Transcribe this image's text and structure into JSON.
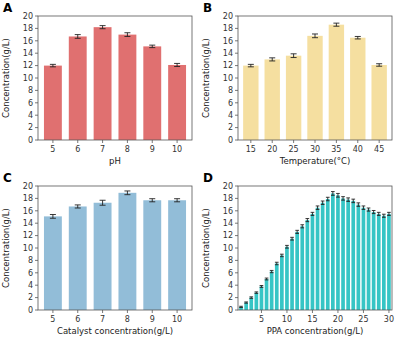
{
  "chart_data": [
    {
      "type": "bar",
      "title": "A",
      "xlabel": "pH",
      "ylabel": "Concentration(g/L)",
      "color": "#E07070",
      "x": [
        5,
        6,
        7,
        8,
        9,
        10
      ],
      "values": [
        12.0,
        16.7,
        18.2,
        17.0,
        15.1,
        12.1
      ],
      "errors": [
        0.2,
        0.3,
        0.25,
        0.3,
        0.2,
        0.25
      ],
      "xlim": [
        4.4,
        10.6
      ],
      "xticks": [
        5,
        6,
        7,
        8,
        9,
        10
      ],
      "ylim": [
        0,
        20
      ],
      "yticks": [
        0,
        2,
        4,
        6,
        8,
        10,
        12,
        14,
        16,
        18,
        20
      ],
      "grid": false
    },
    {
      "type": "bar",
      "title": "B",
      "xlabel": "Temperature(°C)",
      "ylabel": "Concentration(g/L)",
      "color": "#F5DFA0",
      "x": [
        15,
        20,
        25,
        30,
        35,
        40,
        45
      ],
      "values": [
        12.0,
        13.0,
        13.6,
        16.8,
        18.6,
        16.5,
        12.1
      ],
      "errors": [
        0.2,
        0.25,
        0.3,
        0.3,
        0.25,
        0.2,
        0.2
      ],
      "xlim": [
        12.0,
        48.0
      ],
      "xticks": [
        15,
        20,
        25,
        30,
        35,
        40,
        45
      ],
      "ylim": [
        0,
        20
      ],
      "yticks": [
        0,
        2,
        4,
        6,
        8,
        10,
        12,
        14,
        16,
        18,
        20
      ],
      "grid": false
    },
    {
      "type": "bar",
      "title": "C",
      "xlabel": "Catalyst concentration(g/L)",
      "ylabel": "Concentration(g/L)",
      "color": "#92BDD8",
      "x": [
        5,
        6,
        7,
        8,
        9,
        10
      ],
      "values": [
        15.1,
        16.7,
        17.3,
        18.9,
        17.7,
        17.7
      ],
      "errors": [
        0.3,
        0.25,
        0.4,
        0.3,
        0.25,
        0.25
      ],
      "xlim": [
        4.4,
        10.6
      ],
      "xticks": [
        5,
        6,
        7,
        8,
        9,
        10
      ],
      "ylim": [
        0,
        20
      ],
      "yticks": [
        0,
        2,
        4,
        6,
        8,
        10,
        12,
        14,
        16,
        18,
        20
      ],
      "grid": false
    },
    {
      "type": "bar",
      "title": "D",
      "xlabel": "PPA concentration(g/L)",
      "ylabel": "Concentration(g/L)",
      "color": "#36C5C5",
      "x": [
        1,
        2,
        3,
        4,
        5,
        6,
        7,
        8,
        9,
        10,
        11,
        12,
        13,
        14,
        15,
        16,
        17,
        18,
        19,
        20,
        21,
        22,
        23,
        24,
        25,
        26,
        27,
        28,
        29,
        30
      ],
      "values": [
        0.5,
        1.2,
        2.0,
        2.8,
        3.8,
        5.0,
        6.2,
        7.5,
        8.8,
        10.2,
        11.5,
        12.6,
        13.5,
        14.5,
        15.5,
        16.5,
        17.3,
        17.9,
        18.8,
        18.5,
        18.0,
        17.8,
        17.6,
        17.0,
        16.5,
        16.2,
        15.8,
        15.5,
        15.2,
        15.5
      ],
      "errors": [
        0.1,
        0.1,
        0.12,
        0.12,
        0.15,
        0.15,
        0.18,
        0.2,
        0.2,
        0.22,
        0.22,
        0.25,
        0.25,
        0.25,
        0.25,
        0.28,
        0.28,
        0.28,
        0.3,
        0.3,
        0.28,
        0.28,
        0.28,
        0.28,
        0.28,
        0.25,
        0.25,
        0.25,
        0.25,
        0.25
      ],
      "xlim": [
        0.4,
        30.6
      ],
      "xticks": [
        5,
        10,
        15,
        20,
        25,
        30
      ],
      "ylim": [
        0,
        20
      ],
      "yticks": [
        0,
        2,
        4,
        6,
        8,
        10,
        12,
        14,
        16,
        18,
        20
      ],
      "grid": false
    }
  ]
}
